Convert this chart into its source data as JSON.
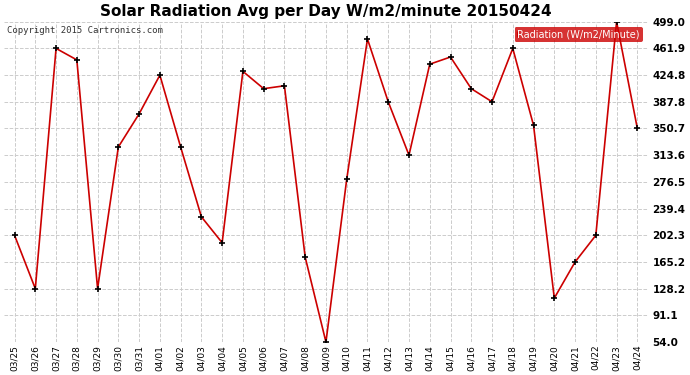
{
  "title": "Solar Radiation Avg per Day W/m2/minute 20150424",
  "copyright": "Copyright 2015 Cartronics.com",
  "legend_label": "Radiation (W/m2/Minute)",
  "dates": [
    "03/25",
    "03/26",
    "03/27",
    "03/28",
    "03/29",
    "03/30",
    "03/31",
    "04/01",
    "04/02",
    "04/03",
    "04/04",
    "04/05",
    "04/06",
    "04/07",
    "04/08",
    "04/09",
    "04/10",
    "04/11",
    "04/12",
    "04/13",
    "04/14",
    "04/15",
    "04/16",
    "04/17",
    "04/18",
    "04/19",
    "04/20",
    "04/21",
    "04/22",
    "04/23",
    "04/24"
  ],
  "values": [
    202.3,
    128.2,
    461.9,
    446.0,
    128.2,
    325.0,
    371.0,
    424.8,
    325.0,
    228.0,
    192.0,
    430.0,
    406.0,
    410.0,
    172.0,
    54.0,
    280.0,
    475.0,
    387.8,
    313.6,
    440.0,
    450.0,
    406.0,
    387.8,
    461.9,
    355.0,
    115.0,
    165.2,
    202.3,
    499.0,
    350.7
  ],
  "ylim": [
    54.0,
    499.0
  ],
  "yticks": [
    54.0,
    91.1,
    128.2,
    165.2,
    202.3,
    239.4,
    276.5,
    313.6,
    350.7,
    387.8,
    424.8,
    461.9,
    499.0
  ],
  "line_color": "#cc0000",
  "marker_color": "#000000",
  "bg_color": "#ffffff",
  "plot_bg_color": "#ffffff",
  "grid_color": "#cccccc",
  "legend_bg": "#cc0000",
  "legend_text_color": "#ffffff",
  "title_fontsize": 11,
  "copyright_fontsize": 6.5,
  "tick_fontsize": 7.5,
  "xtick_fontsize": 6.5
}
